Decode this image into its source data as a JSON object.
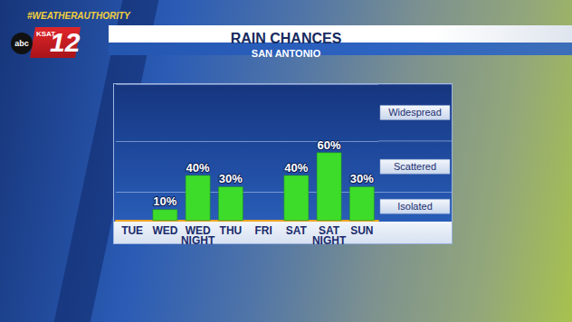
{
  "branding": {
    "hashtag": "#WEATHERAUTHORITY",
    "station": "KSAT",
    "channel": "12",
    "network": "abc"
  },
  "chart_data": {
    "type": "bar",
    "title": "RAIN CHANCES",
    "subtitle": "SAN ANTONIO",
    "categories": [
      "TUE",
      "WED",
      "WED NIGHT",
      "THU",
      "FRI",
      "SAT",
      "SAT NIGHT",
      "SUN"
    ],
    "values": [
      null,
      10,
      40,
      30,
      null,
      40,
      60,
      30
    ],
    "value_labels": [
      null,
      "10%",
      "40%",
      "30%",
      null,
      "40%",
      "60%",
      "30%"
    ],
    "color": "#3ddc2a",
    "ylim": [
      0,
      120
    ],
    "yticks": [
      0,
      25,
      70,
      120
    ],
    "grid": true,
    "data_labels": true,
    "tick_labels": "x",
    "annotations": [
      {
        "text": "Widespread",
        "y": 95
      },
      {
        "text": "Scattered",
        "y": 47.5
      },
      {
        "text": "Isolated",
        "y": 12.5
      }
    ]
  }
}
